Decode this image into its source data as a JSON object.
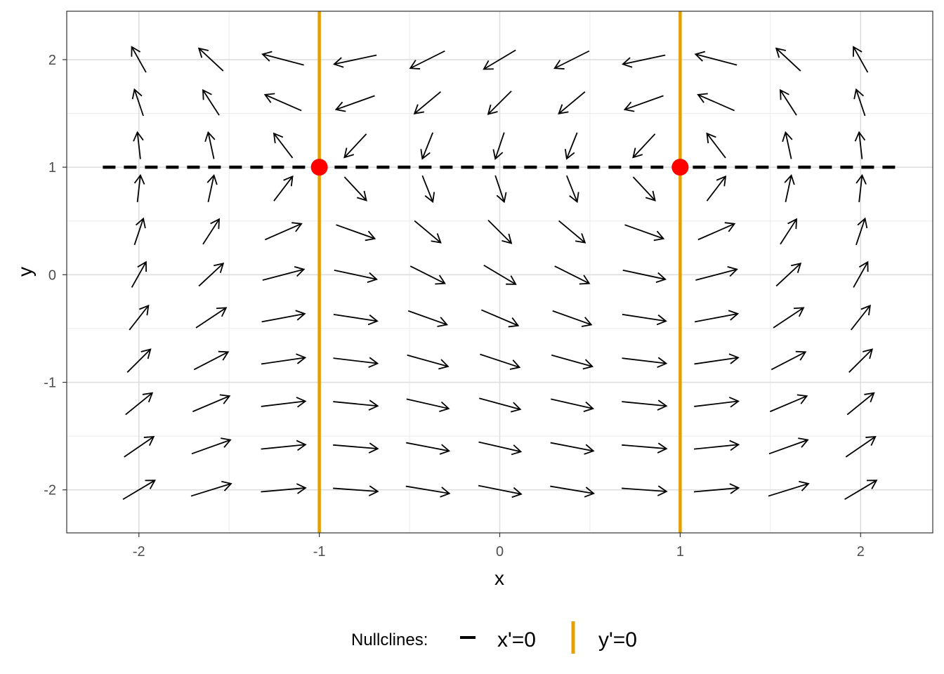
{
  "chart_data": {
    "type": "vector-field",
    "title": "",
    "xlabel": "x",
    "ylabel": "y",
    "xlim": [
      -2.4,
      2.4
    ],
    "ylim": [
      -2.4,
      2.45
    ],
    "grid": true,
    "x_ticks": [
      -2,
      -1,
      0,
      1,
      2
    ],
    "y_ticks": [
      -2,
      -1,
      0,
      1,
      2
    ],
    "x_tick_labels": [
      "-2",
      "-1",
      "0",
      "1",
      "2"
    ],
    "y_tick_labels": [
      "-2",
      "-1",
      "0",
      "1",
      "2"
    ],
    "field": {
      "x_prime": "(1 - y)",
      "y_prime": "(x^2 - 1)",
      "x_range": [
        -2,
        2
      ],
      "y_range": [
        -2,
        2
      ],
      "step": 0.4
    },
    "nullclines": {
      "x_prime_zero": {
        "type": "horizontal",
        "y": 1,
        "style": "dashed",
        "color": "#000000",
        "extent": [
          -2.2,
          2.2
        ]
      },
      "y_prime_zero": {
        "type": "vertical",
        "x": [
          -1,
          1
        ],
        "style": "solid",
        "color": "#E69F00"
      }
    },
    "equilibria": [
      {
        "x": -1,
        "y": 1
      },
      {
        "x": 1,
        "y": 1
      }
    ],
    "equilibrium_color": "#FF0000",
    "legend": {
      "title": "Nullclines:",
      "position": "bottom",
      "entries": [
        {
          "label": "x'=0",
          "style": "dashed",
          "color": "#000000"
        },
        {
          "label": "y'=0",
          "style": "solid",
          "color": "#E69F00"
        }
      ]
    }
  }
}
